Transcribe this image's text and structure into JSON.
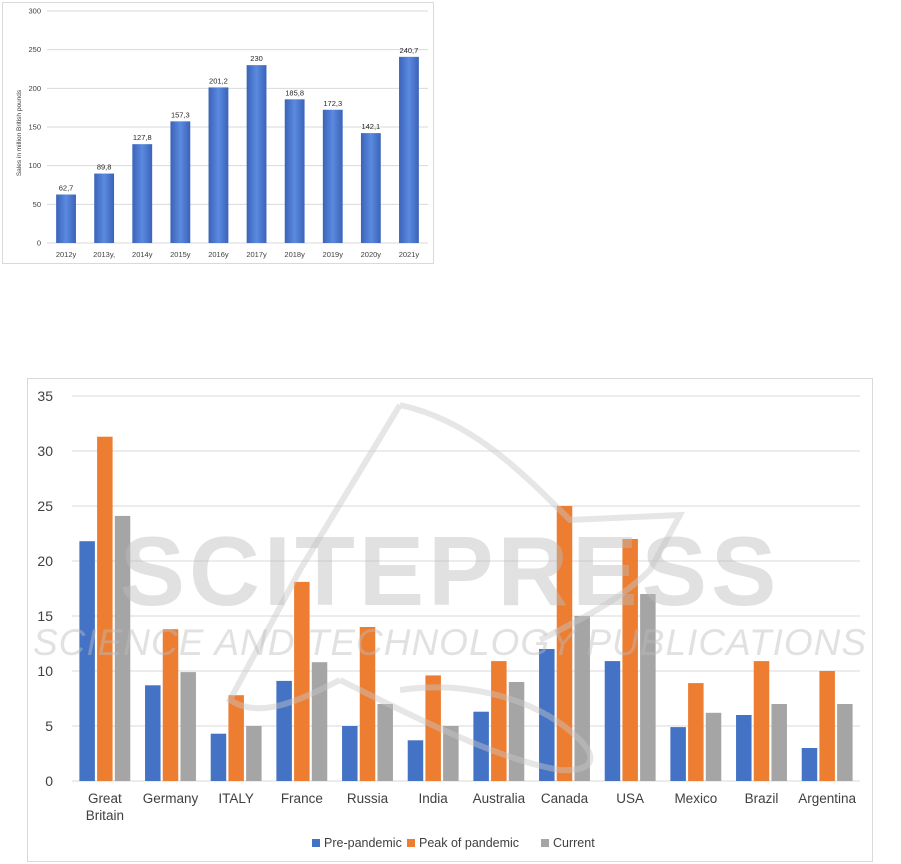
{
  "chart_data": [
    {
      "type": "bar",
      "ylabel": "Sales in million British pounds",
      "categories": [
        "2012y",
        "2013y,",
        "2014y",
        "2015y",
        "2016y",
        "2017y",
        "2018y",
        "2019y",
        "2020y",
        "2021y"
      ],
      "values": [
        62.7,
        89.8,
        127.8,
        157.3,
        201.2,
        230,
        185.8,
        172.3,
        142.1,
        240.7
      ],
      "data_labels": [
        "62,7",
        "89,8",
        "127,8",
        "157,3",
        "201,2",
        "230",
        "185,8",
        "172,3",
        "142,1",
        "240,7"
      ],
      "ylim": [
        0,
        300
      ],
      "yticks": [
        0,
        50,
        100,
        150,
        200,
        250,
        300
      ],
      "grid": true,
      "bar_color": "#4472c4"
    },
    {
      "type": "bar",
      "categories": [
        "Great Britain",
        "Germany",
        "ITALY",
        "France",
        "Russia",
        "India",
        "Australia",
        "Canada",
        "USA",
        "Mexico",
        "Brazil",
        "Argentina"
      ],
      "series": [
        {
          "name": "Pre-pandemic",
          "color": "#4472c4",
          "values": [
            21.8,
            8.7,
            4.3,
            9.1,
            5,
            3.7,
            6.3,
            12,
            10.9,
            4.9,
            6,
            3
          ]
        },
        {
          "name": "Peak of pandemic",
          "color": "#ed7d31",
          "values": [
            31.3,
            13.8,
            7.8,
            18.1,
            14,
            9.6,
            10.9,
            25,
            22,
            8.9,
            10.9,
            10
          ]
        },
        {
          "name": "Current",
          "color": "#a5a5a5",
          "values": [
            24.1,
            9.9,
            5,
            10.8,
            7,
            5,
            9,
            15,
            17,
            6.2,
            7,
            7
          ]
        }
      ],
      "ylim": [
        0,
        35
      ],
      "yticks": [
        0,
        5,
        10,
        15,
        20,
        25,
        30,
        35
      ],
      "grid": true,
      "legend": "bottom"
    }
  ],
  "watermark": {
    "title": "SCITEPRESS",
    "subtitle": "SCIENCE AND TECHNOLOGY PUBLICATIONS"
  }
}
